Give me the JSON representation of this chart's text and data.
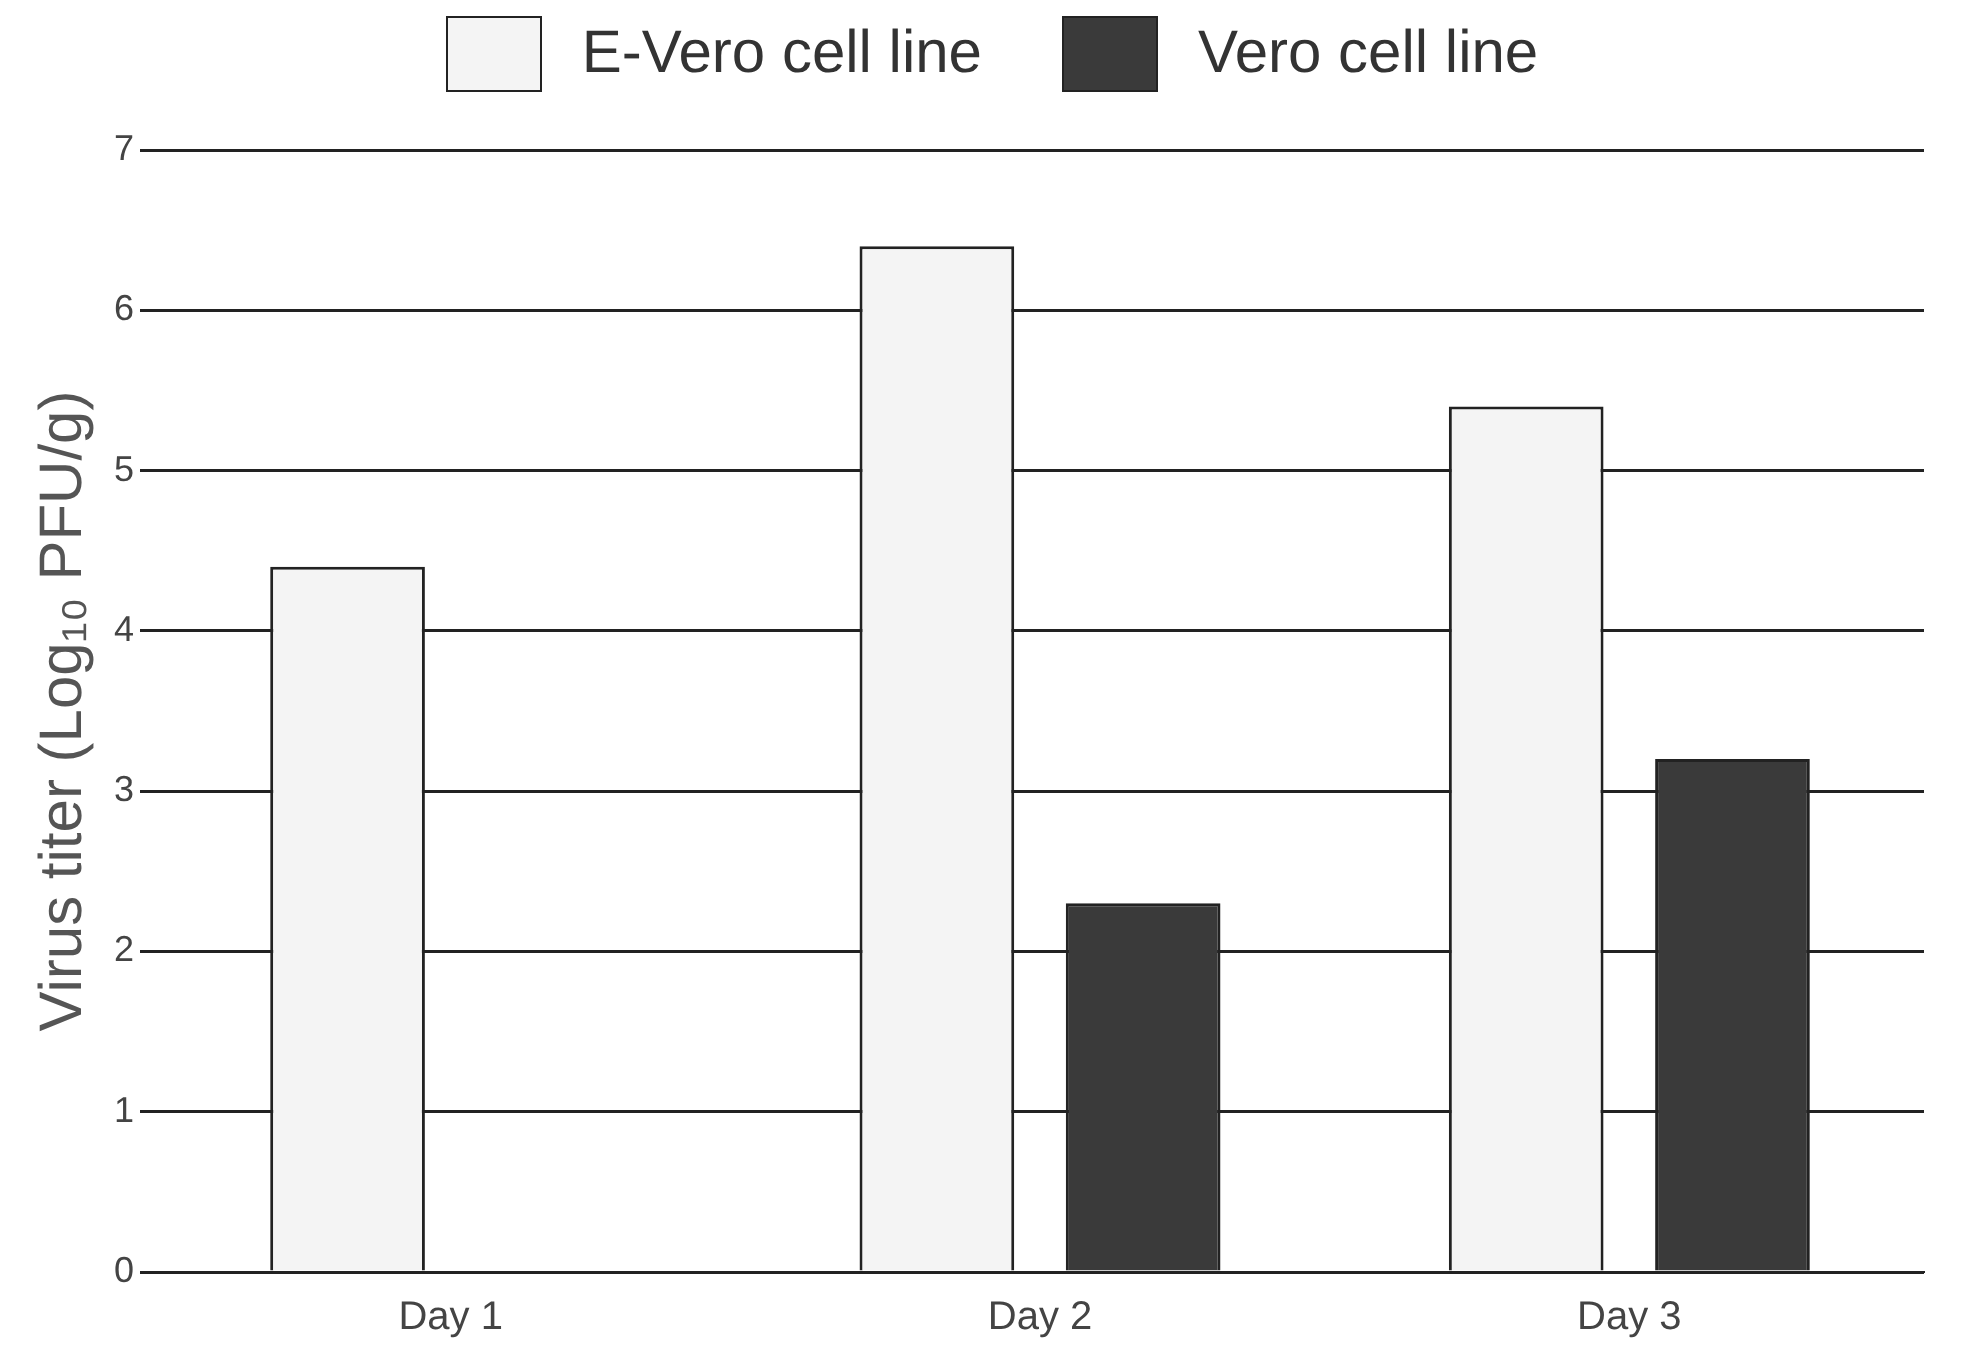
{
  "chart_data": {
    "type": "bar",
    "categories": [
      "Day 1",
      "Day 2",
      "Day 3"
    ],
    "series": [
      {
        "name": "E-Vero cell line",
        "color": "#f4f4f4",
        "values": [
          4.4,
          6.4,
          5.4
        ]
      },
      {
        "name": "Vero cell line",
        "color": "#3a3a3a",
        "values": [
          null,
          2.3,
          3.2
        ]
      }
    ],
    "ylabel": "Virus titer (Log₁₀ PFU/g)",
    "ylim": [
      0,
      7
    ],
    "yticks": [
      0,
      1,
      2,
      3,
      4,
      5,
      6,
      7
    ],
    "grid": "y",
    "legend": "top"
  }
}
